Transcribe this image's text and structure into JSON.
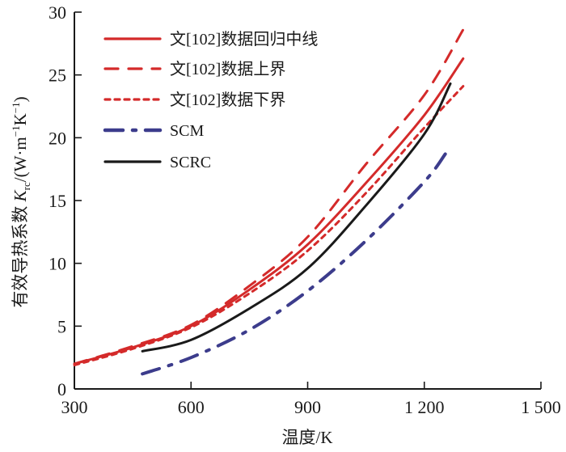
{
  "chart_data": {
    "type": "line",
    "title": "",
    "xlabel": "温度/K",
    "ylabel": {
      "prefix": "有效导热系数 ",
      "symbol": "K",
      "subscript": "rc",
      "unit_open": "/(W·m",
      "exp1": "−1",
      "unit_mid": "K",
      "exp2": "−1",
      "unit_close": ")"
    },
    "xlim": [
      300,
      1500
    ],
    "ylim": [
      0,
      30
    ],
    "xticks": [
      300,
      600,
      900,
      1200,
      1500
    ],
    "xtick_labels": [
      "300",
      "600",
      "900",
      "1 200",
      "1 500"
    ],
    "yticks": [
      0,
      5,
      10,
      15,
      20,
      25,
      30
    ],
    "ytick_labels": [
      "0",
      "5",
      "10",
      "15",
      "20",
      "25",
      "30"
    ],
    "grid": false,
    "legend_position": "top-left",
    "series": [
      {
        "name": "文[102]数据回归中线",
        "color": "#d42a2a",
        "style": "solid",
        "x": [
          300,
          450,
          600,
          750,
          900,
          1050,
          1200,
          1300
        ],
        "y": [
          2.0,
          3.3,
          5.0,
          7.9,
          11.5,
          16.4,
          21.8,
          26.3
        ]
      },
      {
        "name": "文[102]数据上界",
        "color": "#d42a2a",
        "style": "dashed",
        "x": [
          300,
          450,
          600,
          750,
          900,
          1050,
          1200,
          1300
        ],
        "y": [
          2.0,
          3.4,
          5.1,
          8.2,
          12.1,
          17.9,
          23.4,
          28.6
        ]
      },
      {
        "name": "文[102]数据下界",
        "color": "#d42a2a",
        "style": "dotted",
        "x": [
          300,
          450,
          600,
          750,
          900,
          1050,
          1200,
          1300
        ],
        "y": [
          1.9,
          3.2,
          4.9,
          7.6,
          11.0,
          15.6,
          20.8,
          24.1
        ]
      },
      {
        "name": "SCM",
        "color": "#3c3c8c",
        "style": "dashdot",
        "x": [
          475,
          600,
          750,
          900,
          1050,
          1200,
          1254
        ],
        "y": [
          1.2,
          2.5,
          4.7,
          7.8,
          11.8,
          16.5,
          18.7
        ]
      },
      {
        "name": "SCRC",
        "color": "#1a1a1a",
        "style": "solid",
        "x": [
          475,
          600,
          750,
          900,
          1050,
          1200,
          1267
        ],
        "y": [
          3.0,
          3.9,
          6.4,
          9.6,
          14.6,
          20.3,
          24.3
        ]
      }
    ]
  }
}
